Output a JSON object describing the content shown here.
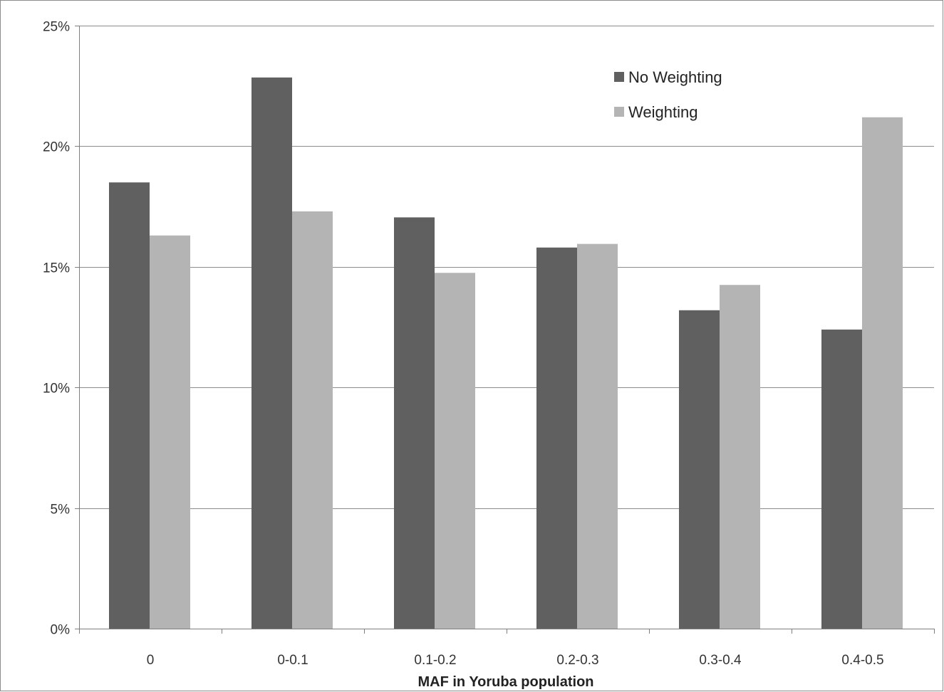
{
  "chart_data": {
    "type": "bar",
    "title": "",
    "xlabel": "MAF in Yoruba population",
    "ylabel": "",
    "categories": [
      "0",
      "0-0.1",
      "0.1-0.2",
      "0.2-0.3",
      "0.3-0.4",
      "0.4-0.5"
    ],
    "series": [
      {
        "name": "No Weighting",
        "values": [
          18.5,
          22.85,
          17.05,
          15.8,
          13.2,
          12.4
        ],
        "color": "#606060"
      },
      {
        "name": "Weighting",
        "values": [
          16.3,
          17.3,
          14.75,
          15.95,
          14.25,
          21.2
        ],
        "color": "#b4b4b4"
      }
    ],
    "ylim": [
      0,
      25
    ],
    "yticks": [
      0,
      5,
      10,
      15,
      20,
      25
    ],
    "ytick_labels": [
      "0%",
      "5%",
      "10%",
      "15%",
      "20%",
      "25%"
    ],
    "grid": true,
    "legend_position": "top-right",
    "colors": {
      "gridline": "#8c8c8c",
      "axis": "#7f7f7f",
      "border": "#8c8c8c"
    }
  }
}
